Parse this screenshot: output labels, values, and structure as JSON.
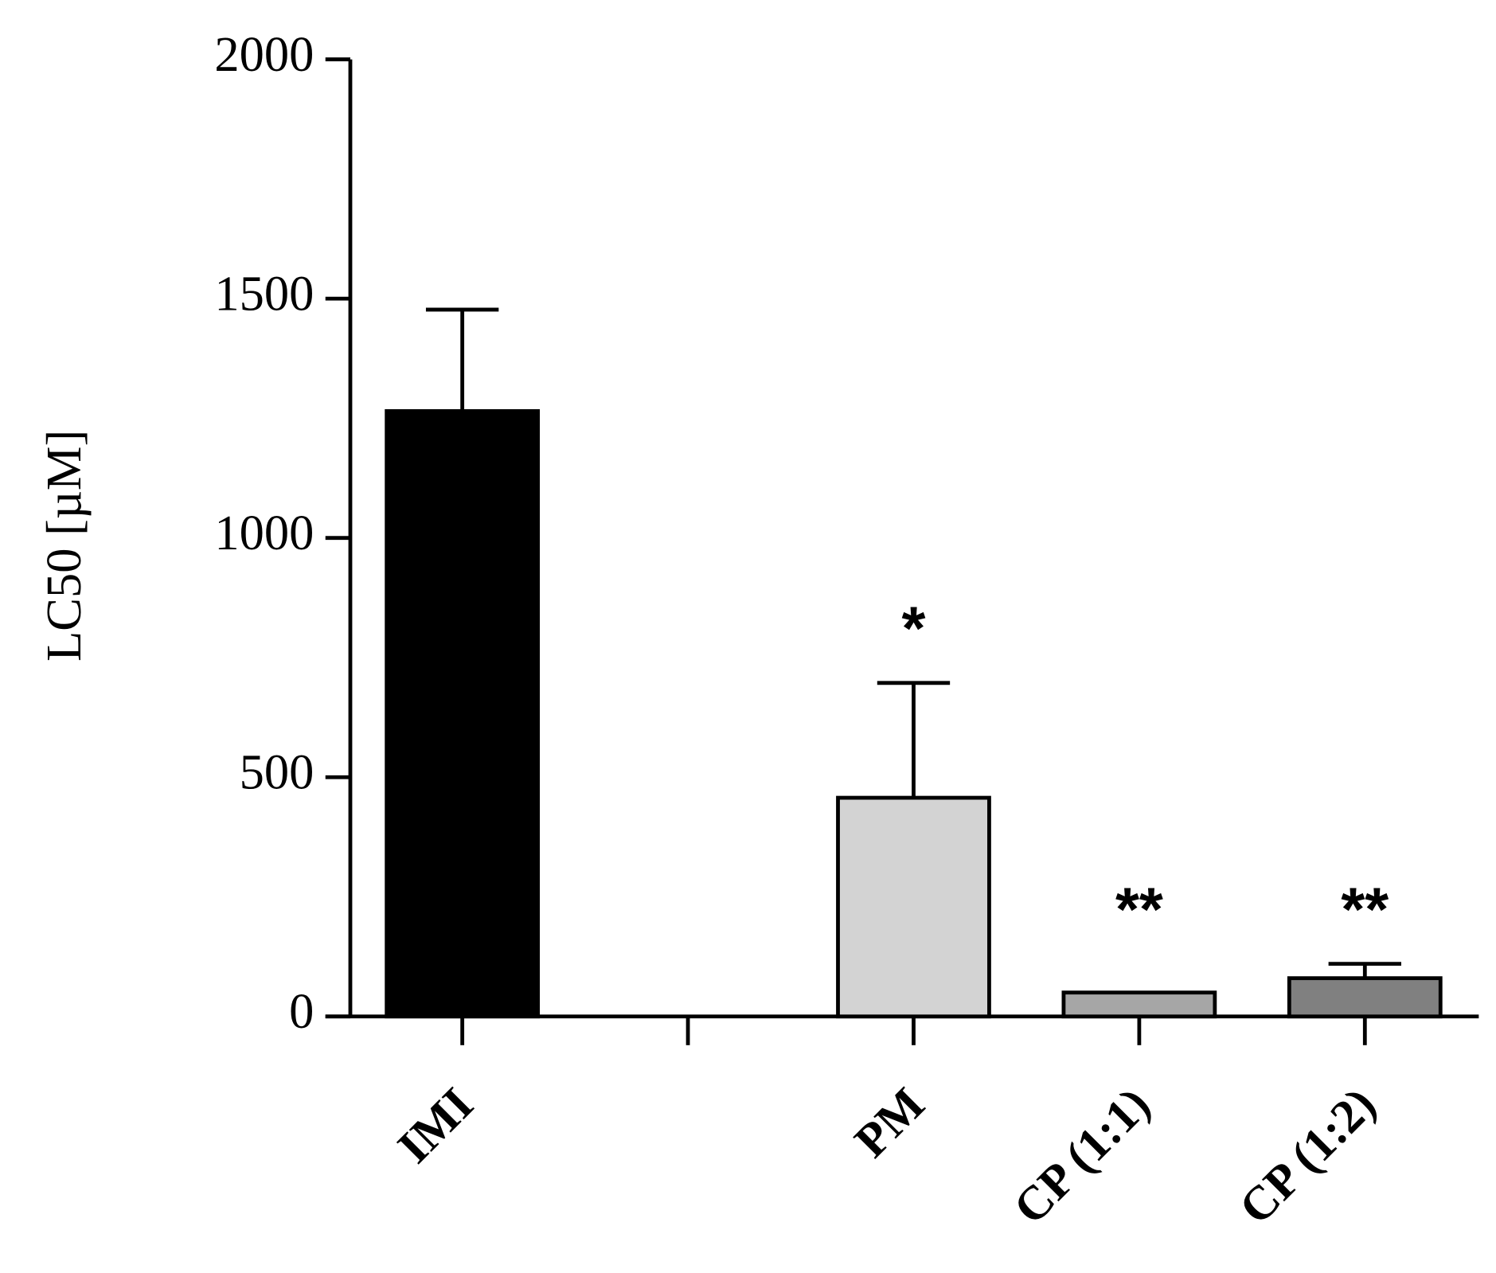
{
  "chart_data": {
    "type": "bar",
    "y_label": "LC50 [µM]",
    "categories": [
      "IMI",
      null,
      "PM",
      "CP (1:1)",
      "CP (1:2)"
    ],
    "values": [
      1265,
      null,
      457,
      50,
      80
    ],
    "errors": [
      212,
      null,
      240,
      null,
      30
    ],
    "colors": [
      "#000000",
      null,
      "#d3d3d3",
      "#a6a6a6",
      "#808080"
    ],
    "annotations": [
      null,
      null,
      "*",
      "**",
      "**"
    ],
    "ylim": [
      0,
      2000
    ],
    "yticks": [
      0,
      500,
      1000,
      1500,
      2000
    ],
    "grid": false
  }
}
